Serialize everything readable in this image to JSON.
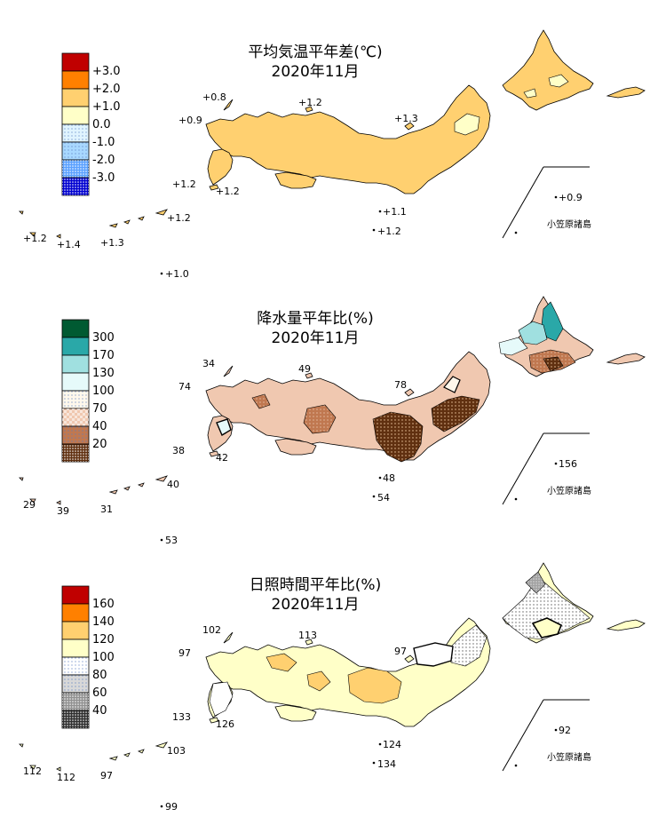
{
  "panels": [
    {
      "id": "temperature",
      "title_line1": "平均気温平年差(℃)",
      "title_line2": "2020年11月",
      "legend": [
        {
          "label": "+3.0",
          "color": "#c00000",
          "pattern": "solid"
        },
        {
          "label": "+2.0",
          "color": "#ff8000",
          "pattern": "solid"
        },
        {
          "label": "+1.0",
          "color": "#ffd070",
          "pattern": "solid"
        },
        {
          "label": "0.0",
          "color": "#ffffc8",
          "pattern": "solid"
        },
        {
          "label": "-1.0",
          "color": "#e0f4ff",
          "pattern": "dots-light"
        },
        {
          "label": "-2.0",
          "color": "#a8d8ff",
          "pattern": "dots-light"
        },
        {
          "label": "-3.0",
          "color": "#5aa0ff",
          "pattern": "dots-dense"
        },
        {
          "label": "",
          "color": "#0000d0",
          "pattern": "dots-dense"
        }
      ],
      "main_fill": "#ffd070",
      "main_fill_name": "+1.0 to +2.0",
      "values": {
        "tsushima": "+0.8",
        "goto": "+0.9",
        "oki": "+1.2",
        "sado": "+1.3",
        "koshiki": "+1.2",
        "tanegashima": "+1.2",
        "hachijojima_north": "+1.1",
        "hachijojima": "+1.2",
        "okinawa_west": "+1.2",
        "okinawa_miyako": "+1.4",
        "okinawa_main": "+1.3",
        "amami": "+1.2",
        "daito": "+1.0",
        "ogasawara": "+0.9"
      },
      "ogasawara_label": "小笠原諸島"
    },
    {
      "id": "precipitation",
      "title_line1": "降水量平年比(%)",
      "title_line2": "2020年11月",
      "legend": [
        {
          "label": "300",
          "color": "#005a32",
          "pattern": "solid"
        },
        {
          "label": "170",
          "color": "#2aa8a8",
          "pattern": "solid"
        },
        {
          "label": "130",
          "color": "#a0e0e0",
          "pattern": "solid"
        },
        {
          "label": "100",
          "color": "#e6fafa",
          "pattern": "solid"
        },
        {
          "label": "70",
          "color": "#fff8ec",
          "pattern": "dots-light"
        },
        {
          "label": "40",
          "color": "#f0c8b0",
          "pattern": "check"
        },
        {
          "label": "20",
          "color": "#c07850",
          "pattern": "dots-light"
        },
        {
          "label": "",
          "color": "#603010",
          "pattern": "dots-dense"
        }
      ],
      "main_fill": "#f0c8b0",
      "main_fill_name": "40 to 70",
      "values": {
        "tsushima": "34",
        "goto": "74",
        "oki": "49",
        "sado": "78",
        "koshiki": "38",
        "tanegashima": "42",
        "hachijojima_north": "48",
        "hachijojima": "54",
        "okinawa_west": "29",
        "okinawa_miyako": "39",
        "okinawa_main": "31",
        "amami": "40",
        "daito": "53",
        "ogasawara": "156"
      },
      "ogasawara_label": "小笠原諸島"
    },
    {
      "id": "sunshine",
      "title_line1": "日照時間平年比(%)",
      "title_line2": "2020年11月",
      "legend": [
        {
          "label": "160",
          "color": "#c00000",
          "pattern": "solid"
        },
        {
          "label": "140",
          "color": "#ff8000",
          "pattern": "solid"
        },
        {
          "label": "120",
          "color": "#ffd070",
          "pattern": "solid"
        },
        {
          "label": "100",
          "color": "#ffffc8",
          "pattern": "solid"
        },
        {
          "label": "80",
          "color": "#ffffff",
          "pattern": "dots-light"
        },
        {
          "label": "60",
          "color": "#d8d8d8",
          "pattern": "dots-light"
        },
        {
          "label": "40",
          "color": "#909090",
          "pattern": "dots-dense"
        },
        {
          "label": "",
          "color": "#303030",
          "pattern": "dots-dense"
        }
      ],
      "main_fill": "#ffffc8",
      "main_fill_name": "100 to 120",
      "values": {
        "tsushima": "102",
        "goto": "97",
        "oki": "113",
        "sado": "97",
        "koshiki": "133",
        "tanegashima": "126",
        "hachijojima_north": "124",
        "hachijojima": "134",
        "okinawa_west": "112",
        "okinawa_miyako": "112",
        "okinawa_main": "97",
        "amami": "103",
        "daito": "99",
        "ogasawara": "92"
      },
      "ogasawara_label": "小笠原諸島"
    }
  ]
}
